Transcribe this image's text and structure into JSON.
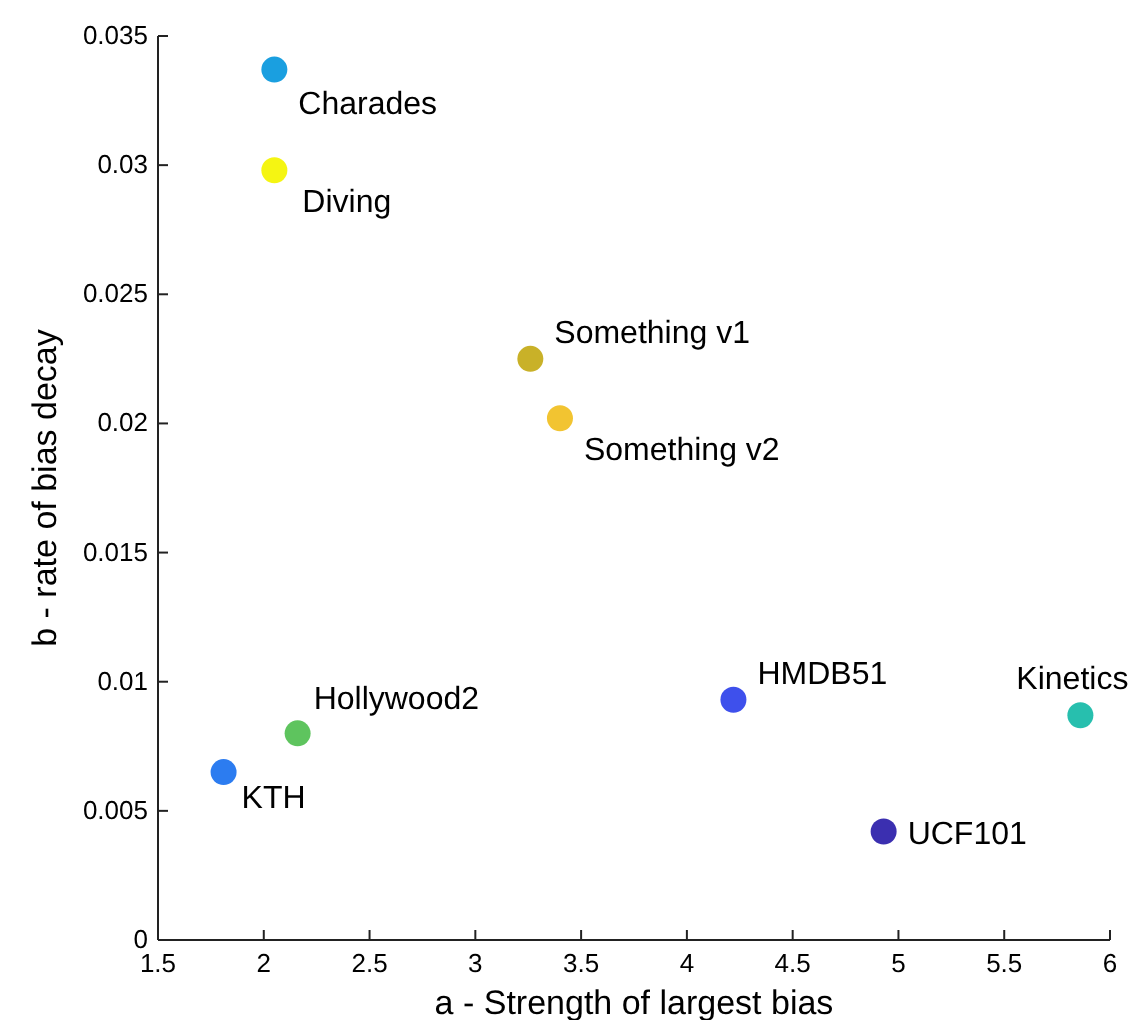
{
  "chart_data": {
    "type": "scatter",
    "xlabel": "a - Strength of largest bias",
    "ylabel": "b - rate of bias decay",
    "xlim": [
      1.5,
      6
    ],
    "xticks": [
      1.5,
      2,
      2.5,
      3,
      3.5,
      4,
      4.5,
      5,
      5.5,
      6
    ],
    "ylim": [
      0,
      0.035
    ],
    "yticks": [
      0,
      0.005,
      0.01,
      0.015,
      0.02,
      0.025,
      0.03,
      0.035
    ],
    "grid": false,
    "marker": "circle",
    "series": [
      {
        "name": "Charades",
        "color": "#1a9fe0",
        "x": [
          2.05
        ],
        "values": [
          0.0337
        ]
      },
      {
        "name": "Diving",
        "color": "#f5f512",
        "x": [
          2.05
        ],
        "values": [
          0.0298
        ]
      },
      {
        "name": "Something v1",
        "color": "#c9b128",
        "x": [
          3.26
        ],
        "values": [
          0.0225
        ]
      },
      {
        "name": "Something v2",
        "color": "#f2c431",
        "x": [
          3.4
        ],
        "values": [
          0.0202
        ]
      },
      {
        "name": "HMDB51",
        "color": "#3e50ec",
        "x": [
          4.22
        ],
        "values": [
          0.0093
        ]
      },
      {
        "name": "Kinetics",
        "color": "#27bfae",
        "x": [
          5.86
        ],
        "values": [
          0.0087
        ]
      },
      {
        "name": "UCF101",
        "color": "#3b2fb0",
        "x": [
          4.93
        ],
        "values": [
          0.0042
        ]
      },
      {
        "name": "Hollywood2",
        "color": "#5ec45e",
        "x": [
          2.16
        ],
        "values": [
          0.008
        ]
      },
      {
        "name": "KTH",
        "color": "#2c7cf0",
        "x": [
          1.81
        ],
        "values": [
          0.0065
        ]
      }
    ]
  }
}
